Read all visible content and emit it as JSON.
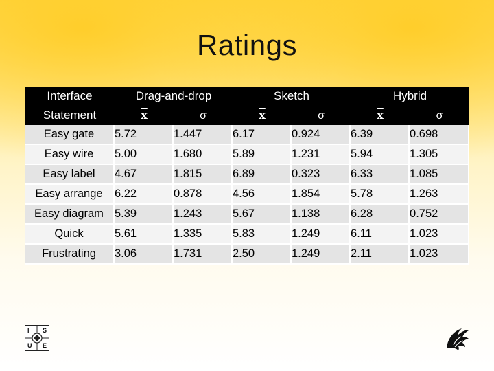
{
  "title": "Ratings",
  "table": {
    "header_row1": {
      "first": "Interface",
      "groups": [
        "Drag-and-drop",
        "Sketch",
        "Hybrid"
      ]
    },
    "header_row2": {
      "first": "Statement",
      "mean_symbol": "x",
      "sd_symbol": "σ"
    },
    "rows": [
      {
        "statement": "Easy gate",
        "values": [
          "5.72",
          "1.447",
          "6.17",
          "0.924",
          "6.39",
          "0.698"
        ]
      },
      {
        "statement": "Easy wire",
        "values": [
          "5.00",
          "1.680",
          "5.89",
          "1.231",
          "5.94",
          "1.305"
        ]
      },
      {
        "statement": "Easy label",
        "values": [
          "4.67",
          "1.815",
          "6.89",
          "0.323",
          "6.33",
          "1.085"
        ]
      },
      {
        "statement": "Easy arrange",
        "values": [
          "6.22",
          "0.878",
          "4.56",
          "1.854",
          "5.78",
          "1.263"
        ]
      },
      {
        "statement": "Easy diagram",
        "values": [
          "5.39",
          "1.243",
          "5.67",
          "1.138",
          "6.28",
          "0.752"
        ]
      },
      {
        "statement": "Quick",
        "values": [
          "5.61",
          "1.335",
          "5.83",
          "1.249",
          "6.11",
          "1.023"
        ]
      },
      {
        "statement": "Frustrating",
        "values": [
          "3.06",
          "1.731",
          "2.50",
          "1.249",
          "2.11",
          "1.023"
        ]
      }
    ]
  },
  "logos": {
    "left": {
      "letters": [
        "I",
        "S",
        "U",
        "E"
      ],
      "icon": "isue-logo-icon"
    },
    "right": {
      "icon": "pegasus-logo-icon"
    }
  },
  "colors": {
    "header_bg": "#000000",
    "row_odd": "#e4e4e4",
    "row_even": "#f3f3f3",
    "accent": "#ffd84a"
  }
}
